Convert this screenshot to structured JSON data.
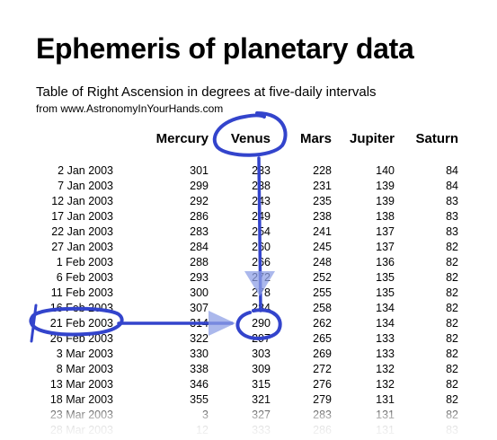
{
  "title": "Ephemeris of planetary data",
  "subtitle": "Table of Right Ascension in degrees at five-daily intervals",
  "source": "from www.AstronomyInYourHands.com",
  "columns": [
    "Mercury",
    "Venus",
    "Mars",
    "Jupiter",
    "Saturn"
  ],
  "rows": [
    {
      "date": "2 Jan 2003",
      "mercury": "301",
      "venus": "233",
      "mars": "228",
      "jupiter": "140",
      "saturn": "84"
    },
    {
      "date": "7 Jan 2003",
      "mercury": "299",
      "venus": "238",
      "mars": "231",
      "jupiter": "139",
      "saturn": "84"
    },
    {
      "date": "12 Jan 2003",
      "mercury": "292",
      "venus": "243",
      "mars": "235",
      "jupiter": "139",
      "saturn": "83"
    },
    {
      "date": "17 Jan 2003",
      "mercury": "286",
      "venus": "249",
      "mars": "238",
      "jupiter": "138",
      "saturn": "83"
    },
    {
      "date": "22 Jan 2003",
      "mercury": "283",
      "venus": "254",
      "mars": "241",
      "jupiter": "137",
      "saturn": "83"
    },
    {
      "date": "27 Jan 2003",
      "mercury": "284",
      "venus": "260",
      "mars": "245",
      "jupiter": "137",
      "saturn": "82"
    },
    {
      "date": "1 Feb 2003",
      "mercury": "288",
      "venus": "266",
      "mars": "248",
      "jupiter": "136",
      "saturn": "82"
    },
    {
      "date": "6 Feb 2003",
      "mercury": "293",
      "venus": "272",
      "mars": "252",
      "jupiter": "135",
      "saturn": "82"
    },
    {
      "date": "11 Feb 2003",
      "mercury": "300",
      "venus": "278",
      "mars": "255",
      "jupiter": "135",
      "saturn": "82"
    },
    {
      "date": "16 Feb 2003",
      "mercury": "307",
      "venus": "284",
      "mars": "258",
      "jupiter": "134",
      "saturn": "82"
    },
    {
      "date": "21 Feb 2003",
      "mercury": "314",
      "venus": "290",
      "mars": "262",
      "jupiter": "134",
      "saturn": "82"
    },
    {
      "date": "26 Feb 2003",
      "mercury": "322",
      "venus": "297",
      "mars": "265",
      "jupiter": "133",
      "saturn": "82"
    },
    {
      "date": "3 Mar 2003",
      "mercury": "330",
      "venus": "303",
      "mars": "269",
      "jupiter": "133",
      "saturn": "82"
    },
    {
      "date": "8 Mar 2003",
      "mercury": "338",
      "venus": "309",
      "mars": "272",
      "jupiter": "132",
      "saturn": "82"
    },
    {
      "date": "13 Mar 2003",
      "mercury": "346",
      "venus": "315",
      "mars": "276",
      "jupiter": "132",
      "saturn": "82"
    },
    {
      "date": "18 Mar 2003",
      "mercury": "355",
      "venus": "321",
      "mars": "279",
      "jupiter": "131",
      "saturn": "82"
    },
    {
      "date": "23 Mar 2003",
      "mercury": "3",
      "venus": "327",
      "mars": "283",
      "jupiter": "131",
      "saturn": "82"
    },
    {
      "date": "28 Mar 2003",
      "mercury": "12",
      "venus": "333",
      "mars": "286",
      "jupiter": "131",
      "saturn": "83"
    }
  ],
  "colors": {
    "annotation": "#3344cc",
    "annotation_light": "#8fa0e6",
    "text": "#000000"
  }
}
